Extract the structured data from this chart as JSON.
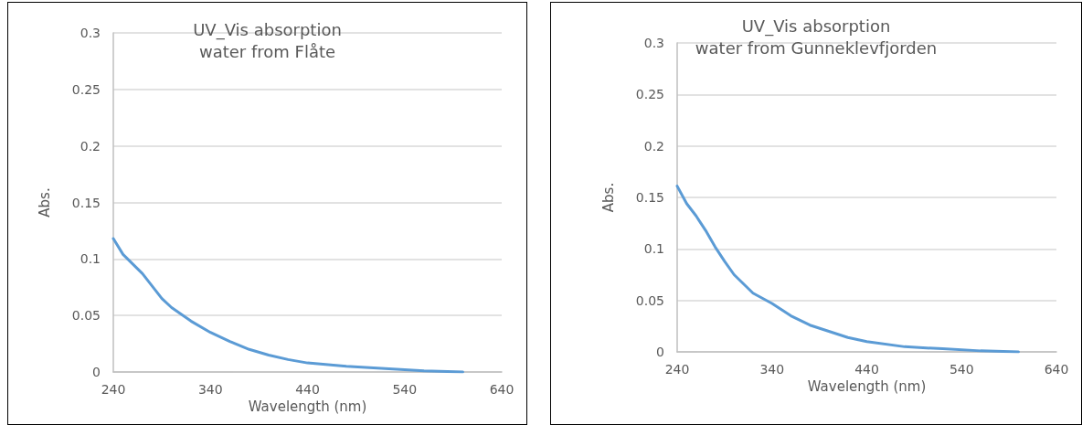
{
  "chart_data": [
    {
      "type": "line",
      "title": "UV_Vis absorption\nwater from Flåte",
      "xlabel": "Wavelength (nm)",
      "ylabel": "Abs.",
      "x": [
        240,
        250,
        270,
        290,
        300,
        320,
        340,
        360,
        380,
        400,
        420,
        440,
        480,
        520,
        560,
        600
      ],
      "series": [
        {
          "color": "#5b9bd5",
          "values": [
            0.118,
            0.104,
            0.087,
            0.065,
            0.057,
            0.045,
            0.035,
            0.027,
            0.02,
            0.015,
            0.011,
            0.008,
            0.005,
            0.003,
            0.001,
            0
          ]
        }
      ],
      "xlim": [
        240,
        640
      ],
      "xticks": [
        240,
        340,
        440,
        540,
        640
      ],
      "ylim": [
        0,
        0.3
      ],
      "yticks": [
        0,
        0.05,
        0.1,
        0.15,
        0.2,
        0.25,
        0.3
      ],
      "grid": "y",
      "marker": "none",
      "line_style": "solid"
    },
    {
      "type": "line",
      "title": "UV_Vis absorption\nwater from Gunneklevfjorden",
      "xlabel": "Wavelength (nm)",
      "ylabel": "Abs.",
      "x": [
        240,
        250,
        260,
        270,
        280,
        290,
        300,
        320,
        340,
        360,
        380,
        400,
        420,
        440,
        480,
        520,
        560,
        600
      ],
      "series": [
        {
          "color": "#5b9bd5",
          "values": [
            0.161,
            0.144,
            0.132,
            0.118,
            0.102,
            0.088,
            0.075,
            0.057,
            0.047,
            0.035,
            0.026,
            0.02,
            0.014,
            0.01,
            0.005,
            0.003,
            0.001,
            0
          ]
        }
      ],
      "xlim": [
        240,
        640
      ],
      "xticks": [
        240,
        340,
        440,
        540,
        640
      ],
      "ylim": [
        0,
        0.3
      ],
      "yticks": [
        0,
        0.05,
        0.1,
        0.15,
        0.2,
        0.25,
        0.3
      ],
      "grid": "y",
      "marker": "none",
      "line_style": "solid"
    }
  ]
}
